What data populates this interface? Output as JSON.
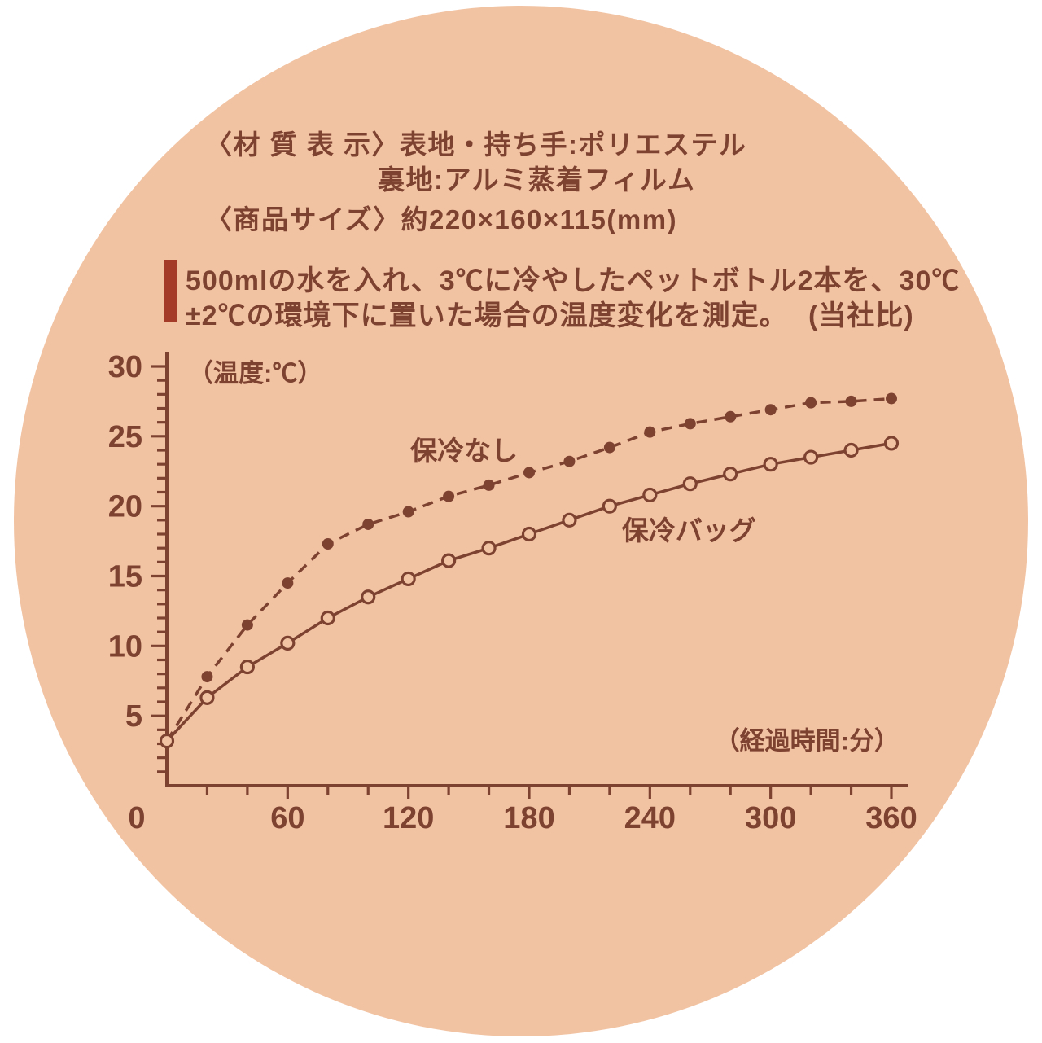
{
  "colors": {
    "background": "#ffffff",
    "circle": "#f2c3a3",
    "ink": "#7e4231",
    "accent_bar": "#a43b28"
  },
  "header": {
    "material_label": "〈材 質 表 示〉",
    "material_value": "表地・持ち手:ポリエステル",
    "material_line2": "裏地:アルミ蒸着フィルム",
    "size_line": "〈商品サイズ〉約220×160×115(mm)"
  },
  "description": {
    "line1": "500mlの水を入れ、3℃に冷やしたペットボトル2本を、30℃",
    "line2": "±2℃の環境下に置いた場合の温度変化を測定。",
    "note": "(当社比)"
  },
  "chart_data": {
    "type": "line",
    "title": "",
    "ylabel": "（温度:℃）",
    "xlabel": "（経過時間:分）",
    "xlim": [
      0,
      360
    ],
    "ylim": [
      0,
      30
    ],
    "x_ticks_labeled": [
      0,
      60,
      120,
      180,
      240,
      300,
      360
    ],
    "x_minor_step": 20,
    "y_ticks_labeled": [
      5,
      10,
      15,
      20,
      25,
      30
    ],
    "y_minor_step": 1,
    "grid": false,
    "legend_position": "inline-annotations",
    "x": [
      0,
      20,
      40,
      60,
      80,
      100,
      120,
      140,
      160,
      180,
      200,
      220,
      240,
      260,
      280,
      300,
      320,
      340,
      360
    ],
    "series": [
      {
        "name": "保冷なし",
        "style": "dashed",
        "marker": "filled",
        "label_pos": {
          "x": 121,
          "y": 23.3
        },
        "values": [
          3.2,
          7.8,
          11.5,
          14.5,
          17.3,
          18.7,
          19.6,
          20.7,
          21.5,
          22.4,
          23.2,
          24.2,
          25.3,
          25.9,
          26.4,
          26.9,
          27.4,
          27.5,
          27.7
        ]
      },
      {
        "name": "保冷バッグ",
        "style": "solid",
        "marker": "open",
        "label_pos": {
          "x": 226,
          "y": 17.6
        },
        "values": [
          3.2,
          6.3,
          8.5,
          10.2,
          12.0,
          13.5,
          14.8,
          16.1,
          17.0,
          18.0,
          19.0,
          20.0,
          20.8,
          21.6,
          22.3,
          23.0,
          23.5,
          24.0,
          24.5
        ]
      }
    ]
  }
}
